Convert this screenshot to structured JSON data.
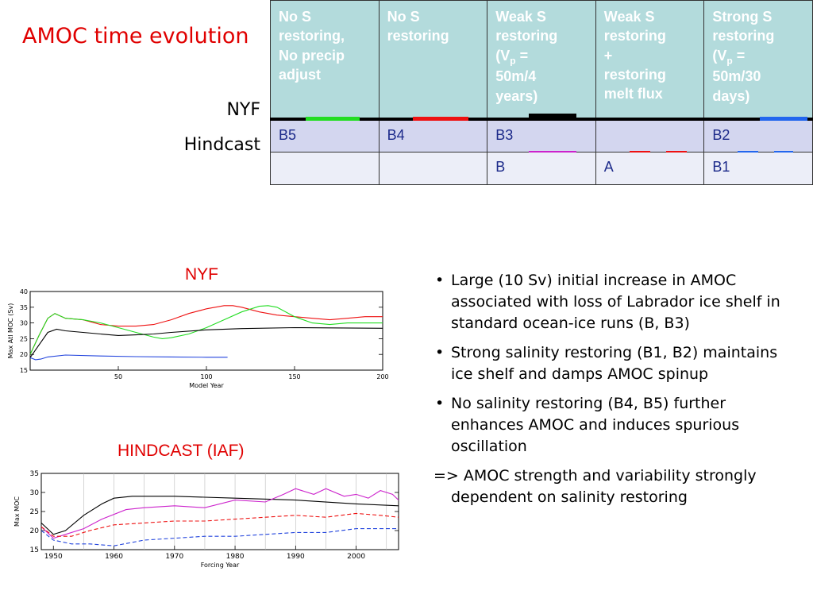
{
  "slide": {
    "title": "AMOC time evolution",
    "row_labels": {
      "nyf": "NYF",
      "hindcast": "Hindcast"
    }
  },
  "table": {
    "headers": [
      [
        "No S",
        "restoring,",
        "No precip",
        "adjust"
      ],
      [
        "No S",
        "restoring"
      ],
      [
        "Weak S",
        "restoring",
        "(V_p =",
        "50m/4",
        "years)"
      ],
      [
        "Weak S",
        "restoring",
        "+",
        "restoring",
        "melt flux"
      ],
      [
        "Strong S",
        "restoring",
        "(V_p =",
        "50m/30",
        "days)"
      ]
    ],
    "header_display": [
      "No S restoring, No precip adjust",
      "No S restoring",
      "Weak S restoring (Vp = 50m/4 years)",
      "Weak S restoring + restoring melt flux",
      "Strong S restoring (Vp = 50m/30 days)"
    ],
    "nyf_row": [
      "B5",
      "B4",
      "B3",
      "",
      "B2"
    ],
    "hindcast_row": [
      "",
      "",
      "B",
      "A",
      "B1"
    ],
    "legend_colors": {
      "B5": "#22dd22",
      "B4": "#ee1111",
      "B3": "#000000",
      "B": "#cc22cc",
      "A": "#ee1111",
      "B1": "#2266ee",
      "B2": "#2266ee"
    }
  },
  "nyf_plot": {
    "title": "NYF",
    "ylabel": "Max Atl MOC (Sv)",
    "xlabel": "Model Year",
    "yticks": [
      "40",
      "35",
      "30",
      "25",
      "20",
      "15"
    ],
    "xticks": [
      "50",
      "100",
      "150",
      "200"
    ]
  },
  "hindcast_plot": {
    "title": "HINDCAST (IAF)",
    "ylabel": "Max MOC",
    "xlabel": "Forcing Year",
    "yticks": [
      "35",
      "30",
      "25",
      "20",
      "15"
    ],
    "xticks": [
      "1950",
      "1960",
      "1970",
      "1980",
      "1990",
      "2000"
    ]
  },
  "chart_data": [
    {
      "type": "line",
      "title": "NYF",
      "xlabel": "Model Year",
      "ylabel": "Max Atl MOC (Sv)",
      "xlim": [
        0,
        200
      ],
      "ylim": [
        15,
        40
      ],
      "series": [
        {
          "color": "#ee1111",
          "x": [
            0,
            5,
            10,
            14,
            20,
            30,
            40,
            50,
            60,
            70,
            80,
            90,
            100,
            110,
            115,
            120,
            130,
            140,
            150,
            160,
            170,
            180,
            190,
            200
          ],
          "y": [
            20,
            26,
            31.5,
            33,
            31.5,
            31,
            29.5,
            29,
            29,
            29.5,
            31,
            33,
            34.5,
            35.5,
            35.5,
            35,
            33.5,
            32.5,
            32,
            31.5,
            31,
            31.5,
            32,
            32
          ]
        },
        {
          "color": "#22dd22",
          "x": [
            0,
            5,
            10,
            14,
            20,
            30,
            40,
            50,
            60,
            70,
            75,
            80,
            90,
            100,
            110,
            120,
            130,
            135,
            140,
            150,
            160,
            170,
            180,
            190,
            200
          ],
          "y": [
            20,
            26,
            31.5,
            33,
            31.5,
            31,
            30,
            28.5,
            27,
            25.5,
            25,
            25.3,
            26.5,
            28.5,
            31,
            33.5,
            35.3,
            35.5,
            35,
            32,
            30,
            29.5,
            30,
            30,
            30
          ]
        },
        {
          "color": "#000000",
          "x": [
            0,
            5,
            10,
            15,
            20,
            30,
            40,
            50,
            60,
            70,
            80,
            100,
            120,
            150,
            200
          ],
          "y": [
            19,
            23,
            27,
            28,
            27.5,
            27,
            26.5,
            26,
            26.2,
            26.5,
            27,
            27.8,
            28.2,
            28.5,
            28.3
          ]
        },
        {
          "color": "#2244dd",
          "x": [
            0,
            3,
            6,
            10,
            20,
            40,
            60,
            80,
            100,
            112
          ],
          "y": [
            19,
            18.3,
            18.5,
            19.2,
            19.8,
            19.5,
            19.3,
            19.2,
            19.1,
            19.1
          ]
        }
      ]
    },
    {
      "type": "line",
      "title": "HINDCAST (IAF)",
      "xlabel": "Forcing Year",
      "ylabel": "Max MOC",
      "xlim": [
        1948,
        2007
      ],
      "ylim": [
        15,
        35
      ],
      "series": [
        {
          "color": "#000000",
          "x": [
            1948,
            1950,
            1952,
            1955,
            1958,
            1960,
            1963,
            1970,
            1980,
            1990,
            2000,
            2007
          ],
          "y": [
            22,
            19,
            20,
            24,
            27,
            28.5,
            29,
            29,
            28.5,
            28,
            27,
            26.5
          ]
        },
        {
          "color": "#cc22cc",
          "x": [
            1948,
            1950,
            1952,
            1955,
            1958,
            1962,
            1965,
            1970,
            1975,
            1980,
            1985,
            1988,
            1990,
            1993,
            1995,
            1998,
            2000,
            2002,
            2004,
            2006,
            2007
          ],
          "y": [
            21,
            18,
            19,
            20.5,
            23,
            25.5,
            26,
            26.5,
            26,
            28,
            27.5,
            29.5,
            31,
            29.5,
            31,
            29,
            29.5,
            28.5,
            30.5,
            29.5,
            28
          ]
        },
        {
          "color": "#ee1111",
          "dashed": true,
          "x": [
            1948,
            1950,
            1953,
            1956,
            1960,
            1965,
            1970,
            1975,
            1980,
            1985,
            1990,
            1995,
            2000,
            2004,
            2007
          ],
          "y": [
            21,
            18.5,
            18.5,
            20,
            21.5,
            22,
            22.5,
            22.5,
            23,
            23.5,
            24,
            23.5,
            24.5,
            24,
            23.5
          ]
        },
        {
          "color": "#2244dd",
          "dashed": true,
          "x": [
            1948,
            1950,
            1953,
            1956,
            1960,
            1965,
            1970,
            1975,
            1980,
            1985,
            1990,
            1995,
            2000,
            2004,
            2007
          ],
          "y": [
            20,
            17.5,
            16.5,
            16.5,
            16,
            17.5,
            18,
            18.5,
            18.5,
            19,
            19.5,
            19.5,
            20.5,
            20.5,
            20.5
          ]
        }
      ]
    }
  ],
  "bullets": [
    "Large (10 Sv) initial increase in AMOC associated with loss of Labrador ice shelf in standard ocean-ice runs (B, B3)",
    "Strong salinity restoring (B1, B2) maintains ice shelf and damps AMOC spinup",
    "No salinity restoring (B4, B5) further enhances AMOC and induces spurious oscillation"
  ],
  "conclusion": "=> AMOC strength and variability strongly dependent on salinity restoring",
  "bullet_glyph": "•",
  "arrow_glyph": "=>"
}
